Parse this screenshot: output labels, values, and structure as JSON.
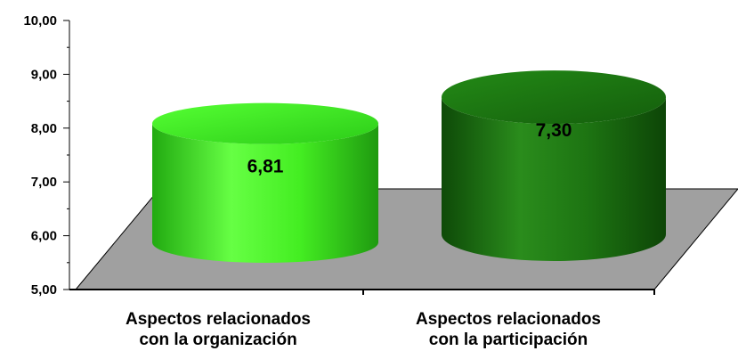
{
  "chart_data": {
    "type": "bar",
    "title": "",
    "xlabel": "",
    "ylabel": "",
    "ylim": [
      5,
      10
    ],
    "yticks": [
      5,
      6,
      7,
      8,
      9,
      10
    ],
    "ytick_labels": [
      "5,00",
      "6,00",
      "7,00",
      "8,00",
      "9,00",
      "10,00"
    ],
    "categories": [
      [
        "Aspectos relacionados",
        "con la organización"
      ],
      [
        "Aspectos relacionados",
        "con la participación"
      ]
    ],
    "values": [
      6.81,
      7.3
    ],
    "value_labels": [
      "6,81",
      "7,30"
    ],
    "bar_shape": "cylinder-3d",
    "colors": [
      "#33ee22",
      "#1b7a12"
    ],
    "floor_color": "#a0a0a0",
    "grid": false,
    "legend": "none"
  }
}
